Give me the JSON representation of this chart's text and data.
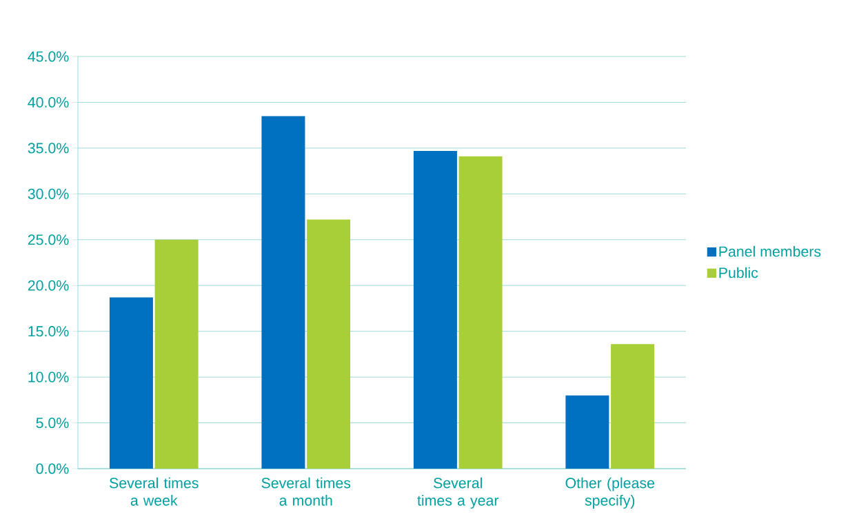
{
  "chart_data": {
    "type": "bar",
    "categories": [
      "Several times a week",
      "Several times a month",
      "Several times a year",
      "Other (please specify)"
    ],
    "series": [
      {
        "name": "Panel members",
        "color": "#0070c0",
        "values": [
          18.7,
          38.5,
          34.7,
          8.0
        ]
      },
      {
        "name": "Public",
        "color": "#a9cf38",
        "values": [
          25.0,
          27.2,
          34.1,
          13.6
        ]
      }
    ],
    "ylim": [
      0,
      45
    ],
    "yticks": [
      {
        "value": 0,
        "label": "0.0%"
      },
      {
        "value": 5,
        "label": "5.0%"
      },
      {
        "value": 10,
        "label": "10.0%"
      },
      {
        "value": 15,
        "label": "15.0%"
      },
      {
        "value": 20,
        "label": "20.0%"
      },
      {
        "value": 25,
        "label": "25.0%"
      },
      {
        "value": 30,
        "label": "30.0%"
      },
      {
        "value": 35,
        "label": "35.0%"
      },
      {
        "value": 40,
        "label": "40.0%"
      },
      {
        "value": 45,
        "label": "45.0%"
      }
    ],
    "grid": "y",
    "legend": "right"
  }
}
